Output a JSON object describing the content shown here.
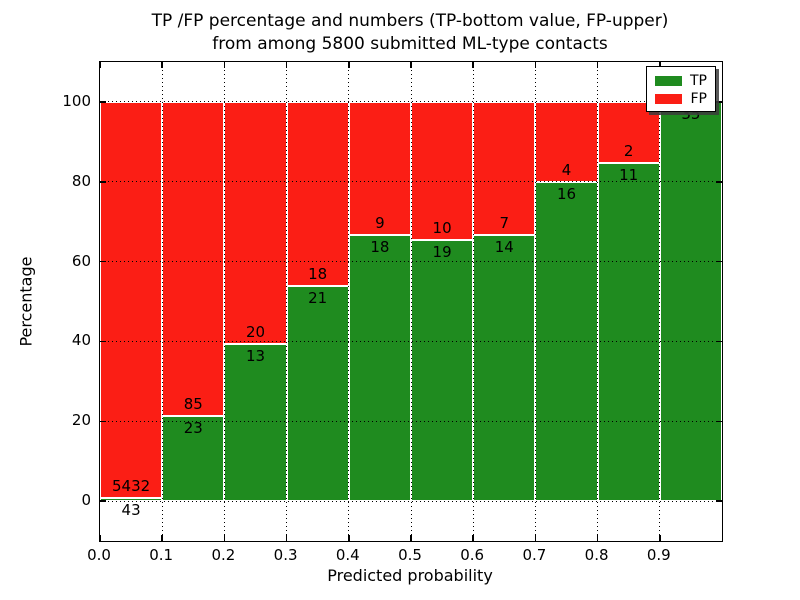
{
  "figure": {
    "title_line1": "TP /FP percentage and numbers (TP-bottom value, FP-upper)",
    "title_line2": "from among 5800 submitted ML-type contacts"
  },
  "chart_data": {
    "type": "bar",
    "variant": "stacked-percentage-histogram",
    "title": "TP /FP percentage and numbers (TP-bottom value, FP-upper)\nfrom among 5800 submitted ML-type contacts",
    "xlabel": "Predicted probability",
    "ylabel": "Percentage",
    "xlim": [
      0.0,
      1.0
    ],
    "ylim": [
      -10,
      110
    ],
    "xtick_labels": [
      "0.0",
      "0.1",
      "0.2",
      "0.3",
      "0.4",
      "0.5",
      "0.6",
      "0.7",
      "0.8",
      "0.9"
    ],
    "ytick_values": [
      0,
      20,
      40,
      60,
      80,
      100
    ],
    "grid": {
      "style": "dotted",
      "color": "#000000",
      "drawn_over_bars": true
    },
    "bin_width": 0.1,
    "bin_starts": [
      0.0,
      0.1,
      0.2,
      0.3,
      0.4,
      0.5,
      0.6,
      0.7,
      0.8,
      0.9
    ],
    "series": [
      {
        "name": "TP",
        "color": "#1f8b1f",
        "counts": [
          43,
          23,
          13,
          21,
          18,
          19,
          14,
          16,
          11,
          35
        ]
      },
      {
        "name": "FP",
        "color": "#fb1e15",
        "counts": [
          5432,
          85,
          20,
          18,
          9,
          10,
          7,
          4,
          2,
          0
        ]
      }
    ],
    "bar_note": "every bar spans 0-100 percent; green TP portion height = TP/(TP+FP)*100, red FP portion stacked above; count labels printed at the TP/FP boundary",
    "tp_percentages": [
      0.79,
      21.3,
      39.39,
      53.85,
      66.67,
      65.52,
      66.67,
      80.0,
      84.62,
      100.0
    ],
    "legend": {
      "labels": [
        "TP",
        "FP"
      ],
      "location": "upper right",
      "shadow": true
    }
  },
  "colors": {
    "tp_green": "#1f8b1f",
    "fp_red": "#fb1e15",
    "background": "#ffffff",
    "axis": "#000000"
  }
}
